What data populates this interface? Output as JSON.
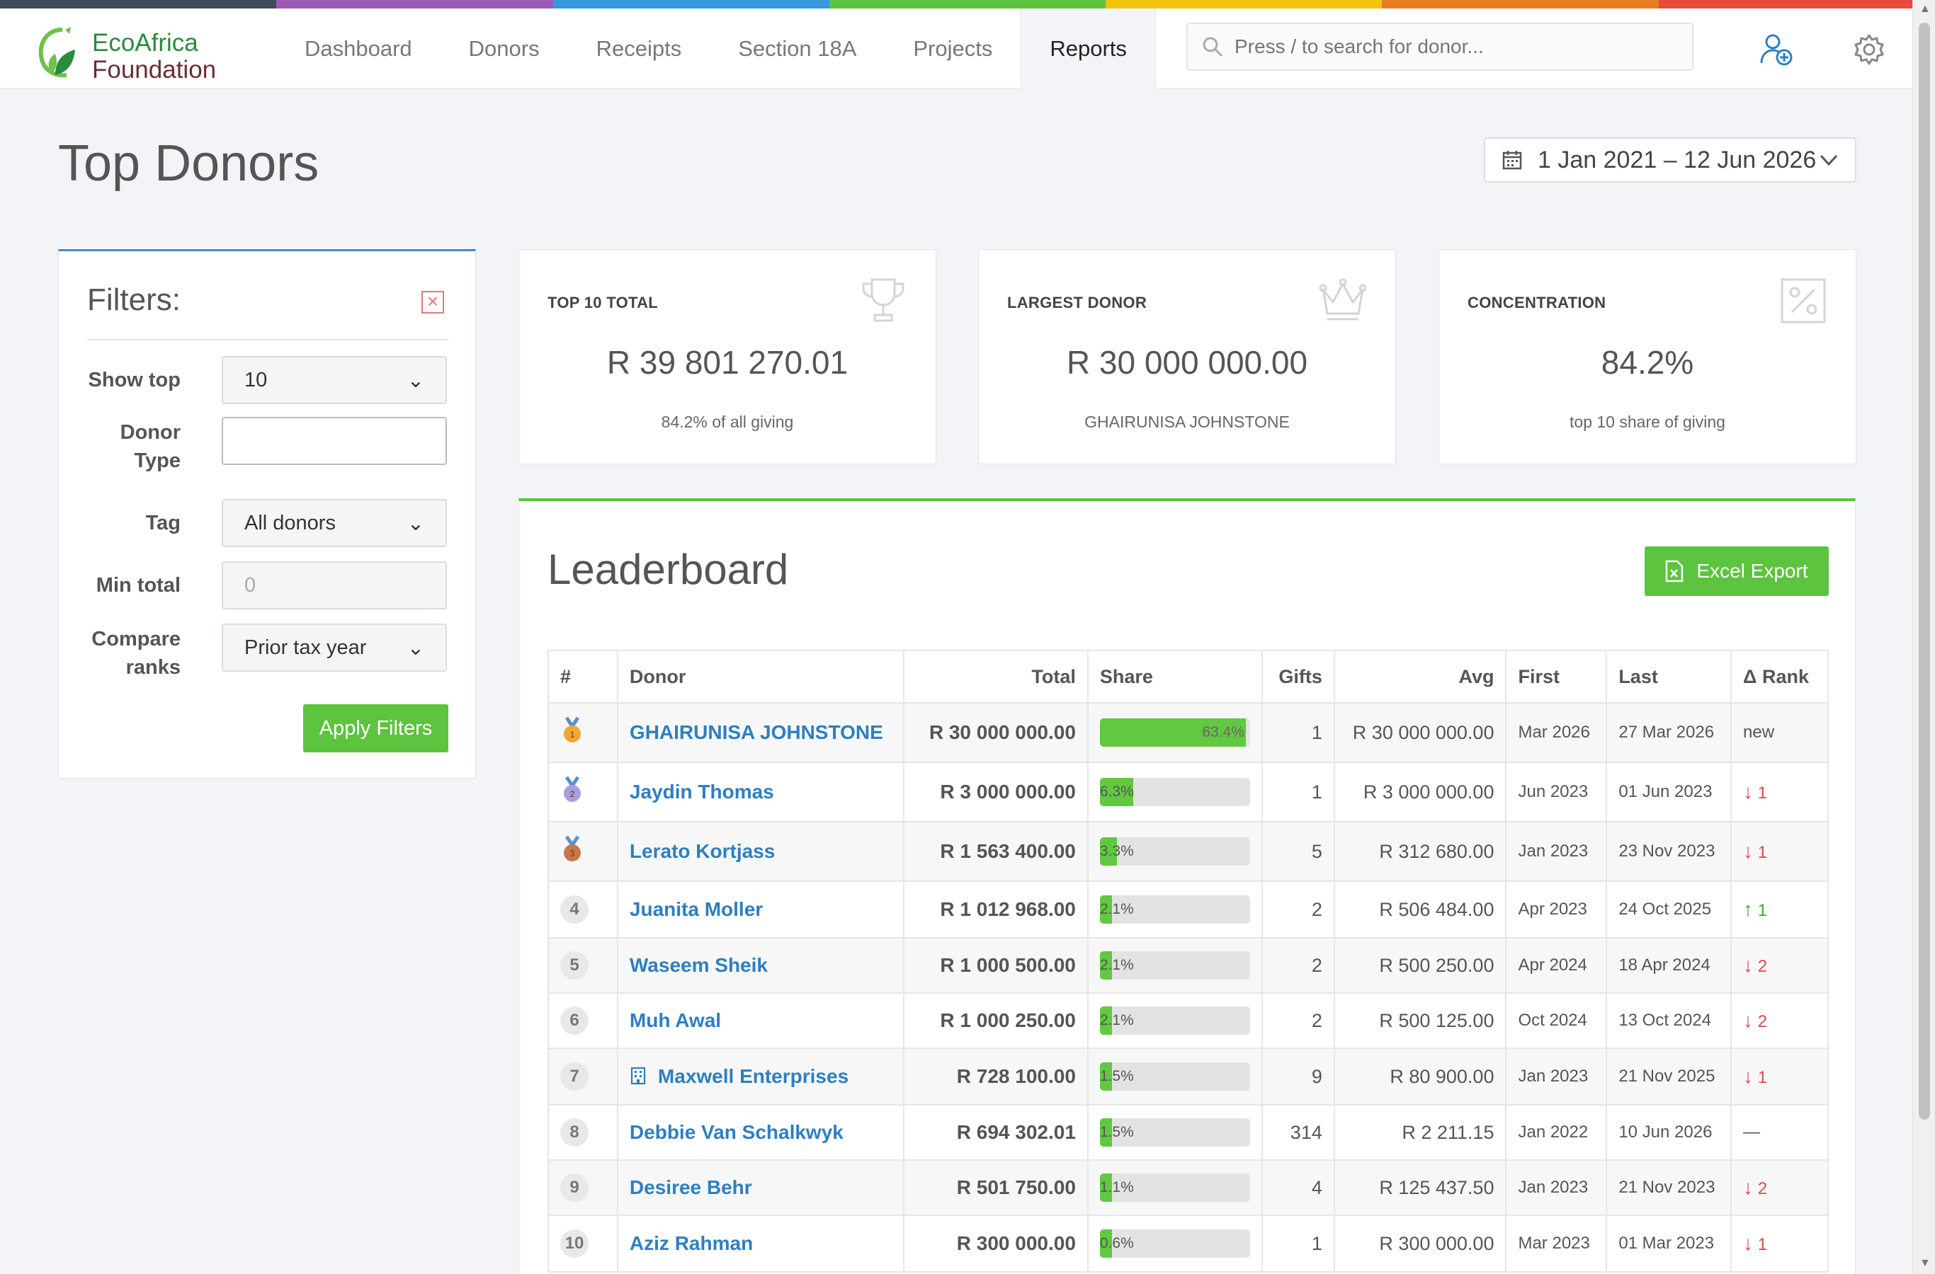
{
  "app": {
    "logo_line1": "EcoAfrica",
    "logo_line2": "Foundation"
  },
  "nav": {
    "dashboard": "Dashboard",
    "donors": "Donors",
    "receipts": "Receipts",
    "section18a": "Section 18A",
    "projects": "Projects",
    "reports": "Reports"
  },
  "search": {
    "placeholder": "Press / to search for donor..."
  },
  "page": {
    "title": "Top Donors",
    "date_range": "1 Jan 2021 – 12 Jun 2026"
  },
  "filters": {
    "title": "Filters:",
    "show_top_label": "Show top",
    "show_top_value": "10",
    "donor_type_label_1": "Donor",
    "donor_type_label_2": "Type",
    "donor_type_value": "",
    "tag_label": "Tag",
    "tag_value": "All donors",
    "min_total_label": "Min total",
    "min_total_placeholder": "0",
    "compare_label_1": "Compare",
    "compare_label_2": "ranks",
    "compare_value": "Prior tax year",
    "apply_label": "Apply Filters"
  },
  "stats": {
    "top10": {
      "label": "TOP 10 TOTAL",
      "value": "R 39 801 270.01",
      "sub": "84.2% of all giving"
    },
    "largest": {
      "label": "LARGEST DONOR",
      "value": "R 30 000 000.00",
      "sub": "GHAIRUNISA JOHNSTONE"
    },
    "concentration": {
      "label": "CONCENTRATION",
      "value": "84.2%",
      "sub": "top 10 share of giving"
    }
  },
  "leaderboard": {
    "title": "Leaderboard",
    "export_label": "Excel Export",
    "columns": {
      "rank": "#",
      "donor": "Donor",
      "total": "Total",
      "share": "Share",
      "gifts": "Gifts",
      "avg": "Avg",
      "first": "First",
      "last": "Last",
      "delta": "Δ Rank"
    },
    "rows": [
      {
        "rank": "1",
        "medal": "gold",
        "donor": "GHAIRUNISA JOHNSTONE",
        "org": false,
        "total": "R 30 000 000.00",
        "share": 63.4,
        "share_label": "63.4%",
        "gifts": "1",
        "avg": "R 30 000 000.00",
        "first": "Mar 2026",
        "last": "27 Mar 2026",
        "delta_dir": "new",
        "delta": "new"
      },
      {
        "rank": "2",
        "medal": "silver",
        "donor": "Jaydin Thomas",
        "org": false,
        "total": "R 3 000 000.00",
        "share": 6.3,
        "share_label": "6.3%",
        "gifts": "1",
        "avg": "R 3 000 000.00",
        "first": "Jun 2023",
        "last": "01 Jun 2023",
        "delta_dir": "down",
        "delta": "1"
      },
      {
        "rank": "3",
        "medal": "bronze",
        "donor": "Lerato Kortjass",
        "org": false,
        "total": "R 1 563 400.00",
        "share": 3.3,
        "share_label": "3.3%",
        "gifts": "5",
        "avg": "R 312 680.00",
        "first": "Jan 2023",
        "last": "23 Nov 2023",
        "delta_dir": "down",
        "delta": "1"
      },
      {
        "rank": "4",
        "medal": "",
        "donor": "Juanita Moller",
        "org": false,
        "total": "R 1 012 968.00",
        "share": 2.1,
        "share_label": "2.1%",
        "gifts": "2",
        "avg": "R 506 484.00",
        "first": "Apr 2023",
        "last": "24 Oct 2025",
        "delta_dir": "up",
        "delta": "1"
      },
      {
        "rank": "5",
        "medal": "",
        "donor": "Waseem Sheik",
        "org": false,
        "total": "R 1 000 500.00",
        "share": 2.1,
        "share_label": "2.1%",
        "gifts": "2",
        "avg": "R 500 250.00",
        "first": "Apr 2024",
        "last": "18 Apr 2024",
        "delta_dir": "down",
        "delta": "2"
      },
      {
        "rank": "6",
        "medal": "",
        "donor": "Muh Awal",
        "org": false,
        "total": "R 1 000 250.00",
        "share": 2.1,
        "share_label": "2.1%",
        "gifts": "2",
        "avg": "R 500 125.00",
        "first": "Oct 2024",
        "last": "13 Oct 2024",
        "delta_dir": "down",
        "delta": "2"
      },
      {
        "rank": "7",
        "medal": "",
        "donor": "Maxwell Enterprises",
        "org": true,
        "total": "R 728 100.00",
        "share": 1.5,
        "share_label": "1.5%",
        "gifts": "9",
        "avg": "R 80 900.00",
        "first": "Jan 2023",
        "last": "21 Nov 2025",
        "delta_dir": "down",
        "delta": "1"
      },
      {
        "rank": "8",
        "medal": "",
        "donor": "Debbie Van Schalkwyk",
        "org": false,
        "total": "R 694 302.01",
        "share": 1.5,
        "share_label": "1.5%",
        "gifts": "314",
        "avg": "R 2 211.15",
        "first": "Jan 2022",
        "last": "10 Jun 2026",
        "delta_dir": "same",
        "delta": "—"
      },
      {
        "rank": "9",
        "medal": "",
        "donor": "Desiree Behr",
        "org": false,
        "total": "R 501 750.00",
        "share": 1.1,
        "share_label": "1.1%",
        "gifts": "4",
        "avg": "R 125 437.50",
        "first": "Jan 2023",
        "last": "21 Nov 2023",
        "delta_dir": "down",
        "delta": "2"
      },
      {
        "rank": "10",
        "medal": "",
        "donor": "Aziz Rahman",
        "org": false,
        "total": "R 300 000.00",
        "share": 0.6,
        "share_label": "0.6%",
        "gifts": "1",
        "avg": "R 300 000.00",
        "first": "Mar 2023",
        "last": "01 Mar 2023",
        "delta_dir": "down",
        "delta": "1"
      }
    ]
  },
  "colors": {
    "accent_green": "#5cc43e",
    "link_blue": "#2d7fc2",
    "filters_border": "#3e8ecf",
    "stripe": [
      "#3f4a5a",
      "#9b59b6",
      "#3498db",
      "#5cc43e",
      "#f1c40f",
      "#e67e22",
      "#e74c3c"
    ]
  }
}
